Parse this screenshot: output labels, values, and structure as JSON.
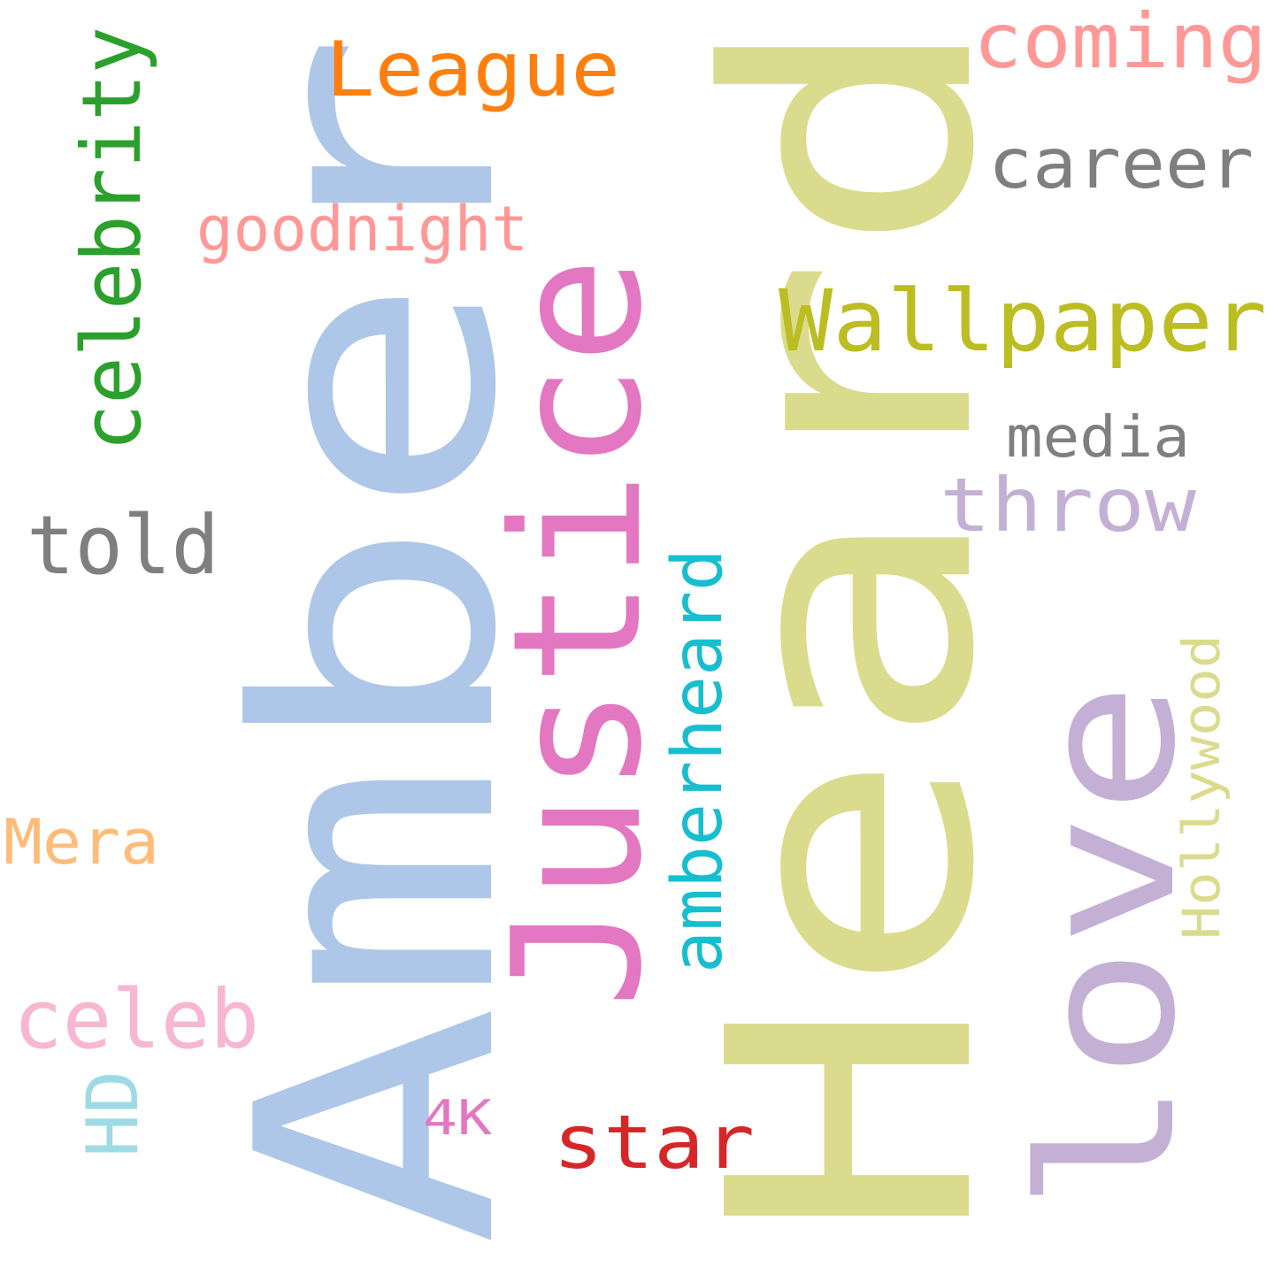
{
  "words": [
    {
      "id": "amber",
      "text": "Amber",
      "color": "#aec7e8",
      "rotated": true
    },
    {
      "id": "heard",
      "text": "Heard",
      "color": "#dbdb8d",
      "rotated": true
    },
    {
      "id": "justice",
      "text": "Justice",
      "color": "#e377c2",
      "rotated": true
    },
    {
      "id": "love",
      "text": "love",
      "color": "#c5b0d5",
      "rotated": true
    },
    {
      "id": "celebrity",
      "text": "celebrity",
      "color": "#2ca02c",
      "rotated": true
    },
    {
      "id": "amberheard",
      "text": "amberheard",
      "color": "#17becf",
      "rotated": true
    },
    {
      "id": "hollywood",
      "text": "Hollywood",
      "color": "#dbdb8d",
      "rotated": true
    },
    {
      "id": "hd",
      "text": "HD",
      "color": "#9edae5",
      "rotated": true
    },
    {
      "id": "league",
      "text": "League",
      "color": "#ff7f0e",
      "rotated": false
    },
    {
      "id": "coming",
      "text": "coming",
      "color": "#ff9896",
      "rotated": false
    },
    {
      "id": "career",
      "text": "career",
      "color": "#7f7f7f",
      "rotated": false
    },
    {
      "id": "goodnight",
      "text": "goodnight",
      "color": "#ff9896",
      "rotated": false
    },
    {
      "id": "wallpaper",
      "text": "Wallpaper",
      "color": "#bcbd22",
      "rotated": false
    },
    {
      "id": "media",
      "text": "media",
      "color": "#7f7f7f",
      "rotated": false
    },
    {
      "id": "throw",
      "text": "throw",
      "color": "#c5b0d5",
      "rotated": false
    },
    {
      "id": "told",
      "text": "told",
      "color": "#7f7f7f",
      "rotated": false
    },
    {
      "id": "mera",
      "text": "Mera",
      "color": "#ffbb78",
      "rotated": false
    },
    {
      "id": "celeb",
      "text": "celeb",
      "color": "#f7b6d2",
      "rotated": false
    },
    {
      "id": "4k",
      "text": "4K",
      "color": "#e377c2",
      "rotated": false
    },
    {
      "id": "star",
      "text": "star",
      "color": "#d62728",
      "rotated": false
    }
  ]
}
